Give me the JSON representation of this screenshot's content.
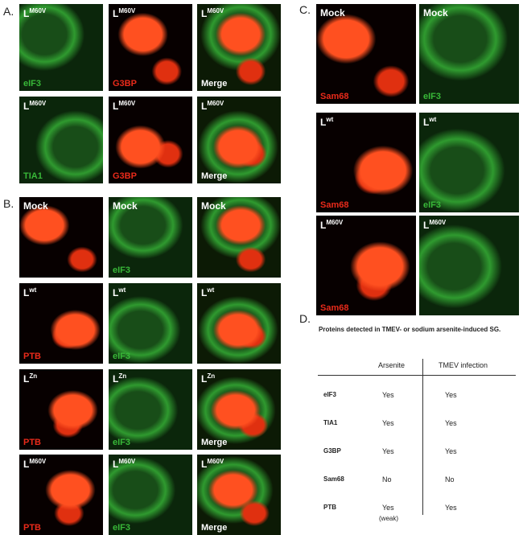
{
  "panel_a": {
    "label": "A.",
    "rows": [
      [
        {
          "title": "L",
          "sup": "M60V",
          "caption": "eIF3"
        },
        {
          "title": "L",
          "sup": "M60V",
          "caption": "G3BP"
        },
        {
          "title": "L",
          "sup": "M60V",
          "caption": "Merge"
        }
      ],
      [
        {
          "title": "L",
          "sup": "M60V",
          "caption": "TIA1"
        },
        {
          "title": "L",
          "sup": "M60V",
          "caption": "G3BP"
        },
        {
          "title": "L",
          "sup": "M60V",
          "caption": "Merge"
        }
      ]
    ]
  },
  "panel_b": {
    "label": "B.",
    "rows": [
      [
        {
          "title": "Mock"
        },
        {
          "title": "Mock",
          "caption": "eIF3"
        },
        {
          "title": "Mock"
        }
      ],
      [
        {
          "title": "L",
          "sup": "wt",
          "caption": "PTB"
        },
        {
          "title": "L",
          "sup": "wt",
          "caption": "eIF3"
        },
        {
          "title": "L",
          "sup": "wt"
        }
      ],
      [
        {
          "title": "L",
          "sup": "Zn",
          "caption": "PTB"
        },
        {
          "title": "L",
          "sup": "Zn",
          "caption": "eIF3"
        },
        {
          "title": "L",
          "sup": "Zn",
          "caption": "Merge"
        }
      ],
      [
        {
          "title": "L",
          "sup": "M60V",
          "caption": "PTB"
        },
        {
          "title": "L",
          "sup": "M60V",
          "caption": "eIF3"
        },
        {
          "title": "L",
          "sup": "M60V",
          "caption": "Merge"
        }
      ]
    ]
  },
  "panel_c": {
    "label": "C.",
    "rows": [
      [
        {
          "title": "Mock",
          "caption": "Sam68"
        },
        {
          "title": "Mock",
          "caption": "eIF3"
        }
      ],
      [
        {
          "title": "L",
          "sup": "wt",
          "caption": "Sam68"
        },
        {
          "title": "L",
          "sup": "wt",
          "caption": "eIF3"
        }
      ],
      [
        {
          "title": "L",
          "sup": "M60V",
          "caption": "Sam68"
        },
        {
          "title": "L",
          "sup": "M60V"
        }
      ]
    ]
  },
  "panel_d": {
    "label": "D.",
    "title": "Proteins detected in TMEV- or sodium arsenite-induced SG.",
    "columns": [
      "Arsenite",
      "TMEV infection"
    ],
    "rows": [
      [
        "eIF3",
        "Yes",
        "Yes"
      ],
      [
        "TIA1",
        "Yes",
        "Yes"
      ],
      [
        "G3BP",
        "Yes",
        "Yes"
      ],
      [
        "Sam68",
        "No",
        "No"
      ],
      [
        "PTB",
        "Yes",
        "Yes"
      ]
    ],
    "note": "(weak)"
  }
}
